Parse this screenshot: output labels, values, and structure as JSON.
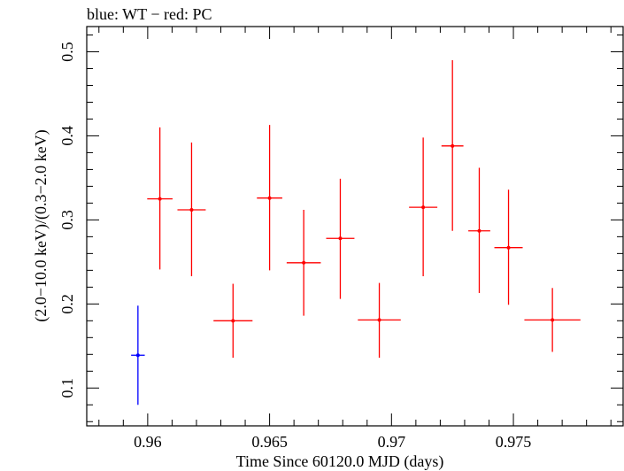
{
  "chart_data": {
    "type": "scatter",
    "title": "blue: WT − red: PC",
    "xlabel": "Time Since 60120.0 MJD (days)",
    "ylabel": "(2.0−10.0 keV)/(0.3−2.0 keV)",
    "xlim": [
      0.9575,
      0.9795
    ],
    "ylim": [
      0.055,
      0.53
    ],
    "xticks": [
      0.96,
      0.965,
      0.97,
      0.975
    ],
    "xtick_labels": [
      "0.96",
      "0.965",
      "0.97",
      "0.975"
    ],
    "yticks": [
      0.1,
      0.2,
      0.3,
      0.4,
      0.5
    ],
    "ytick_labels": [
      "0.1",
      "0.2",
      "0.3",
      "0.4",
      "0.5"
    ],
    "grid": false,
    "series": [
      {
        "color": "#0000ff",
        "points": [
          {
            "x": 0.9596,
            "xerr": 0.00028,
            "y": 0.139,
            "ylo": 0.08,
            "yhi": 0.198
          }
        ]
      },
      {
        "color": "#ff0000",
        "points": [
          {
            "x": 0.9605,
            "xerr": 0.00052,
            "y": 0.325,
            "ylo": 0.241,
            "yhi": 0.41
          },
          {
            "x": 0.9618,
            "xerr": 0.00058,
            "y": 0.312,
            "ylo": 0.233,
            "yhi": 0.392
          },
          {
            "x": 0.9635,
            "xerr": 0.0008,
            "y": 0.18,
            "ylo": 0.136,
            "yhi": 0.224
          },
          {
            "x": 0.965,
            "xerr": 0.00052,
            "y": 0.326,
            "ylo": 0.24,
            "yhi": 0.413
          },
          {
            "x": 0.9664,
            "xerr": 0.0007,
            "y": 0.249,
            "ylo": 0.186,
            "yhi": 0.312
          },
          {
            "x": 0.9679,
            "xerr": 0.00058,
            "y": 0.278,
            "ylo": 0.206,
            "yhi": 0.349
          },
          {
            "x": 0.9695,
            "xerr": 0.00088,
            "y": 0.181,
            "ylo": 0.136,
            "yhi": 0.225
          },
          {
            "x": 0.9713,
            "xerr": 0.00058,
            "y": 0.315,
            "ylo": 0.233,
            "yhi": 0.398
          },
          {
            "x": 0.9725,
            "xerr": 0.00045,
            "y": 0.388,
            "ylo": 0.287,
            "yhi": 0.49
          },
          {
            "x": 0.9736,
            "xerr": 0.00045,
            "y": 0.287,
            "ylo": 0.213,
            "yhi": 0.362
          },
          {
            "x": 0.9748,
            "xerr": 0.00058,
            "y": 0.267,
            "ylo": 0.199,
            "yhi": 0.336
          },
          {
            "x": 0.9766,
            "xerr": 0.00115,
            "y": 0.181,
            "ylo": 0.143,
            "yhi": 0.219
          }
        ]
      }
    ]
  }
}
